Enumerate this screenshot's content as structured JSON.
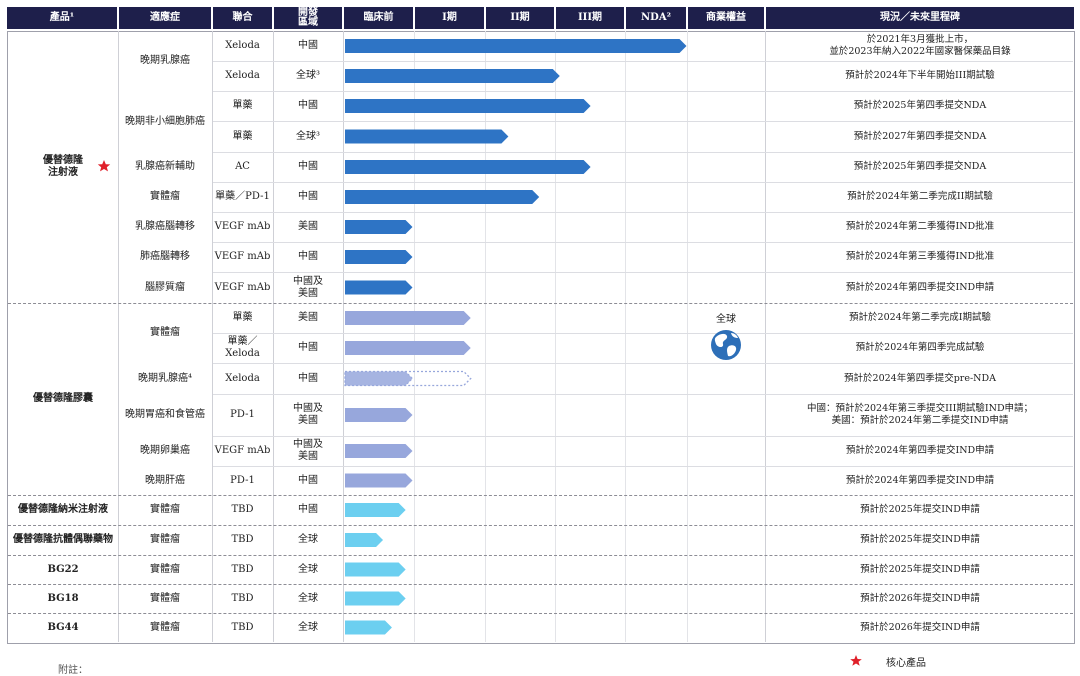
{
  "headers": {
    "product": "產品¹",
    "indication": "適應症",
    "combo": "聯合",
    "region": "開發\n區域",
    "preclinical": "臨床前",
    "phase1": "I期",
    "phase2": "II期",
    "phase3": "III期",
    "nda": "NDA²",
    "rights": "商業權益",
    "status": "現況／未來里程碑"
  },
  "chart_data": {
    "type": "table",
    "stages": [
      "臨床前",
      "I期",
      "II期",
      "III期",
      "NDA²"
    ],
    "products": [
      {
        "name": "優替德隆\n注射液",
        "core": true
      },
      {
        "name": "優替德隆膠囊",
        "core": false
      },
      {
        "name": "優替德隆納米注射液",
        "core": false
      },
      {
        "name": "優替德隆抗體偶聯藥物",
        "core": false
      },
      {
        "name": "BG22",
        "core": false
      },
      {
        "name": "BG18",
        "core": false
      },
      {
        "name": "BG44",
        "core": false
      }
    ],
    "indication_groups": [
      {
        "label": "晚期乳腺癌"
      },
      {
        "label": "晚期非小細胞肺癌"
      },
      {
        "label": "實體瘤"
      }
    ],
    "rows": [
      {
        "indication": "",
        "combo": "Xeloda",
        "region": "中國",
        "progress": 5.0,
        "style": "solid",
        "color": "#2e74c5",
        "status": "於2021年3月獲批上市，\n並於2023年納入2022年國家醫保藥品目錄"
      },
      {
        "indication": "",
        "combo": "Xeloda",
        "region": "全球³",
        "progress": 3.15,
        "style": "solid",
        "color": "#2e74c5",
        "status": "預計於2024年下半年開始III期試驗"
      },
      {
        "indication": "",
        "combo": "單藥",
        "region": "中國",
        "progress": 3.6,
        "style": "solid",
        "color": "#2e74c5",
        "status": "預計於2025年第四季提交NDA"
      },
      {
        "indication": "",
        "combo": "單藥",
        "region": "全球³",
        "progress": 2.4,
        "style": "solid",
        "color": "#2e74c5",
        "status": "預計於2027年第四季提交NDA"
      },
      {
        "indication": "乳腺癌新輔助",
        "combo": "AC",
        "region": "中國",
        "progress": 3.6,
        "style": "solid",
        "color": "#2e74c5",
        "status": "預計於2025年第四季提交NDA"
      },
      {
        "indication": "",
        "combo": "單藥／PD-1",
        "region": "中國",
        "progress": 2.85,
        "style": "solid",
        "color": "#2e74c5",
        "status": "預計於2024年第二季完成II期試驗"
      },
      {
        "indication": "乳腺癌腦轉移",
        "combo": "VEGF mAb",
        "region": "美國",
        "progress": 1.0,
        "style": "solid",
        "color": "#2e74c5",
        "status": "預計於2024年第二季獲得IND批准"
      },
      {
        "indication": "肺癌腦轉移",
        "combo": "VEGF mAb",
        "region": "中國",
        "progress": 1.0,
        "style": "solid",
        "color": "#2e74c5",
        "status": "預計於2024年第三季獲得IND批准"
      },
      {
        "indication": "腦膠質瘤",
        "combo": "VEGF mAb",
        "region": "中國及\n美國",
        "progress": 1.0,
        "style": "solid",
        "color": "#2e74c5",
        "status": "預計於2024年第四季提交IND申請"
      },
      {
        "indication": "",
        "combo": "單藥",
        "region": "美國",
        "progress": 1.85,
        "style": "solid",
        "color": "#97a7dc",
        "status": "預計於2024年第二季完成I期試驗"
      },
      {
        "indication": "",
        "combo": "單藥／\nXeloda",
        "region": "中國",
        "progress": 1.85,
        "style": "solid",
        "color": "#97a7dc",
        "status": "預計於2024年第四季完成試驗"
      },
      {
        "indication": "晚期乳腺癌⁴",
        "combo": "Xeloda",
        "region": "中國",
        "progress": 1.0,
        "extended": 1.85,
        "style": "dotted",
        "color": "#97a7dc",
        "status": "預計於2024年第四季提交pre-NDA"
      },
      {
        "indication": "晚期胃癌和食管癌",
        "combo": "PD-1",
        "region": "中國及\n美國",
        "progress": 1.0,
        "style": "solid",
        "color": "#97a7dc",
        "status": "中國：預計於2024年第三季提交III期試驗IND申請；\n美國：預計於2024年第二季提交IND申請"
      },
      {
        "indication": "晚期卵巢癌",
        "combo": "VEGF mAb",
        "region": "中國及\n美國",
        "progress": 1.0,
        "style": "solid",
        "color": "#97a7dc",
        "status": "預計於2024年第四季提交IND申請"
      },
      {
        "indication": "晚期肝癌",
        "combo": "PD-1",
        "region": "中國",
        "progress": 1.0,
        "style": "solid",
        "color": "#97a7dc",
        "status": "預計於2024年第四季提交IND申請"
      },
      {
        "indication": "實體瘤",
        "combo": "TBD",
        "region": "中國",
        "progress": 0.9,
        "style": "solid",
        "color": "#6ccff0",
        "status": "預計於2025年提交IND申請"
      },
      {
        "indication": "實體瘤",
        "combo": "TBD",
        "region": "全球",
        "progress": 0.57,
        "style": "solid",
        "color": "#6ccff0",
        "status": "預計於2025年提交IND申請"
      },
      {
        "indication": "實體瘤",
        "combo": "TBD",
        "region": "全球",
        "progress": 0.9,
        "style": "solid",
        "color": "#6ccff0",
        "status": "預計於2025年提交IND申請"
      },
      {
        "indication": "實體瘤",
        "combo": "TBD",
        "region": "全球",
        "progress": 0.9,
        "style": "solid",
        "color": "#6ccff0",
        "status": "預計於2026年提交IND申請"
      },
      {
        "indication": "實體瘤",
        "combo": "TBD",
        "region": "全球",
        "progress": 0.7,
        "style": "solid",
        "color": "#6ccff0",
        "status": "預計於2026年提交IND申請"
      }
    ],
    "rights_label": "全球"
  },
  "legend": {
    "core_label": "核心產品",
    "star_color": "#e0202a"
  },
  "footnote": "附註："
}
